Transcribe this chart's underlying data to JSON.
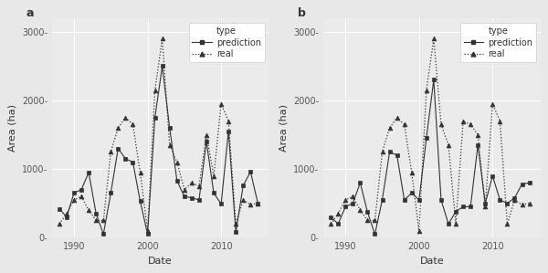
{
  "panel_a": {
    "years": [
      1988,
      1989,
      1990,
      1991,
      1992,
      1993,
      1994,
      1995,
      1996,
      1997,
      1998,
      1999,
      2000,
      2001,
      2002,
      2003,
      2004,
      2005,
      2006,
      2007,
      2008,
      2009,
      2010,
      2011,
      2012,
      2013,
      2014,
      2015
    ],
    "prediction": [
      420,
      300,
      650,
      700,
      950,
      350,
      50,
      650,
      1300,
      1150,
      1100,
      530,
      50,
      1750,
      2500,
      1600,
      830,
      600,
      580,
      550,
      1400,
      650,
      490,
      1550,
      80,
      760,
      960,
      500
    ],
    "real": [
      200,
      350,
      550,
      600,
      400,
      250,
      250,
      1250,
      1600,
      1750,
      1650,
      950,
      100,
      2150,
      2900,
      1350,
      1100,
      700,
      800,
      750,
      1500,
      900,
      1950,
      1700,
      200,
      550,
      480,
      500
    ]
  },
  "panel_b": {
    "years": [
      1988,
      1989,
      1990,
      1991,
      1992,
      1993,
      1994,
      1995,
      1996,
      1997,
      1998,
      1999,
      2000,
      2001,
      2002,
      2003,
      2004,
      2005,
      2006,
      2007,
      2008,
      2009,
      2010,
      2011,
      2012,
      2013,
      2014,
      2015
    ],
    "prediction": [
      300,
      200,
      450,
      500,
      800,
      370,
      50,
      550,
      1250,
      1200,
      550,
      650,
      550,
      1450,
      2300,
      550,
      200,
      380,
      450,
      450,
      1350,
      500,
      900,
      550,
      500,
      580,
      780,
      800
    ],
    "real": [
      200,
      350,
      550,
      600,
      400,
      250,
      250,
      1250,
      1600,
      1750,
      1650,
      950,
      100,
      2150,
      2900,
      1650,
      1350,
      200,
      1700,
      1650,
      1500,
      450,
      1950,
      1700,
      200,
      550,
      480,
      500
    ]
  },
  "fig_bg_color": "#e8e8e8",
  "panel_bg_color": "#ebebeb",
  "line_color": "#333333",
  "grid_color": "#ffffff",
  "ylabel": "Area (ha)",
  "xlabel": "Date",
  "ylim": [
    0,
    3200
  ],
  "yticks": [
    0,
    1000,
    2000,
    3000
  ],
  "ytick_labels": [
    "0",
    "1000",
    "2000",
    "3000"
  ],
  "xticks": [
    1990,
    2000,
    2010
  ],
  "legend_labels": [
    "prediction",
    "real"
  ],
  "panel_labels": [
    "a",
    "b"
  ],
  "axis_fontsize": 7,
  "tick_fontsize": 7,
  "label_fontsize": 8
}
